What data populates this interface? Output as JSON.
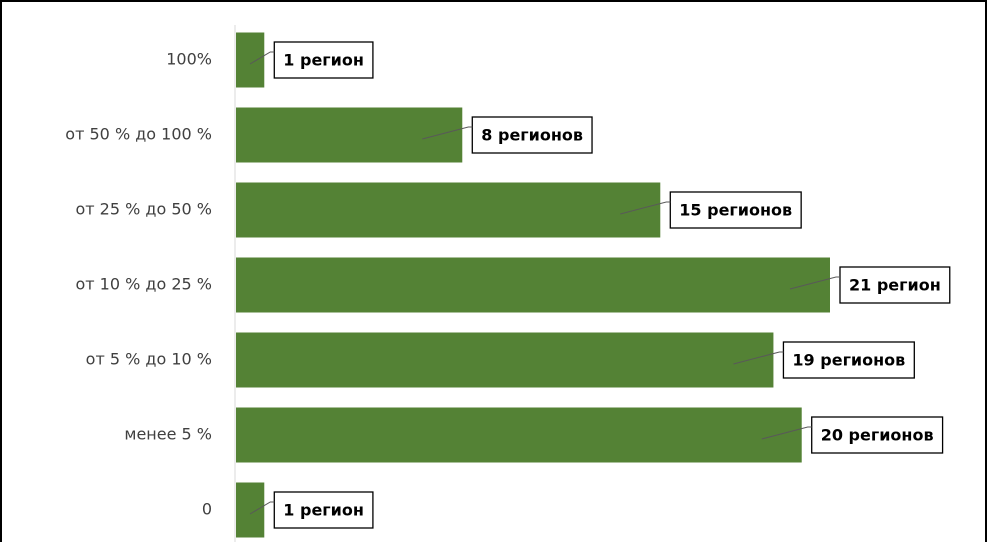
{
  "chart_data": {
    "type": "bar",
    "orientation": "horizontal",
    "categories": [
      "100%",
      "от 50 % до 100 %",
      "от 25 % до 50 %",
      "от 10 % до 25 %",
      "от 5 % до 10 %",
      "менее 5 %",
      "0"
    ],
    "values": [
      1,
      8,
      15,
      21,
      19,
      20,
      1
    ],
    "value_labels": [
      "1 регион",
      "8 регионов",
      "15 регионов",
      "21 регион",
      "19 регионов",
      "20 регионов",
      "1 регион"
    ],
    "color": "#548235"
  }
}
